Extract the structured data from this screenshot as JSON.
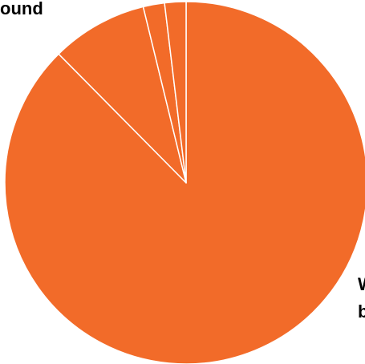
{
  "chart_data": {
    "type": "pie",
    "slices": [
      {
        "value": 87.5
      },
      {
        "value": 8.6
      },
      {
        "value": 1.9
      },
      {
        "value": 1.9
      }
    ],
    "slice_color": "#F26B29",
    "separator_color": "#FFFFFF",
    "visible_labels": {
      "top_left": "ound",
      "right_line1": "W",
      "right_line2": "b"
    }
  }
}
